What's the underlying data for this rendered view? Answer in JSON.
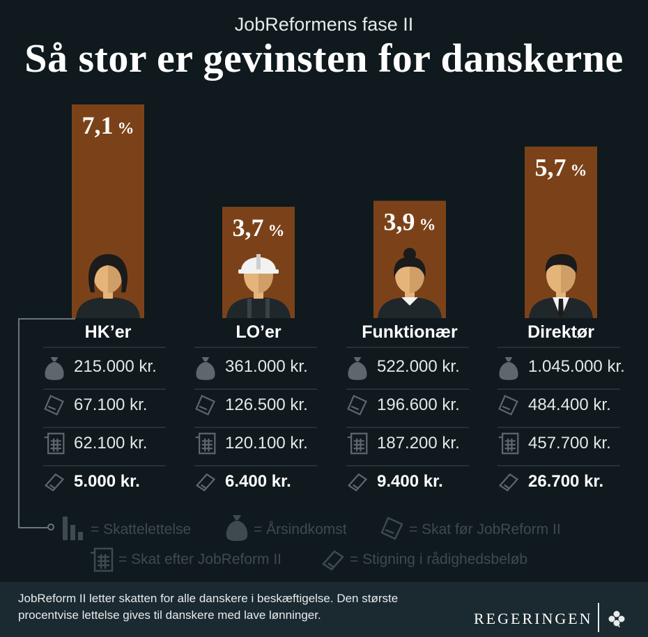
{
  "header": {
    "subtitle": "JobReformens fase II",
    "title": "Så stor er gevinsten for danskerne"
  },
  "chart_data": {
    "type": "bar",
    "categories": [
      "HK’er",
      "LO’er",
      "Funktionær",
      "Direktør"
    ],
    "values": [
      7.1,
      3.7,
      3.9,
      5.7
    ],
    "value_labels": [
      "7,1",
      "3,7",
      "3,9",
      "5,7"
    ],
    "unit": "%",
    "title": "Så stor er gevinsten for danskerne",
    "xlabel": "",
    "ylabel": "",
    "ylim": [
      0,
      7.1
    ],
    "grid": false,
    "legend": "bottom"
  },
  "table": {
    "columns": [
      {
        "label": "HK’er",
        "values": [
          "215.000 kr.",
          "67.100 kr.",
          "62.100 kr.",
          "5.000 kr."
        ]
      },
      {
        "label": "LO’er",
        "values": [
          "361.000 kr.",
          "126.500 kr.",
          "120.100 kr.",
          "6.400 kr."
        ]
      },
      {
        "label": "Funktionær",
        "values": [
          "522.000 kr.",
          "196.600 kr.",
          "187.200 kr.",
          "9.400 kr."
        ]
      },
      {
        "label": "Direktør",
        "values": [
          "1.045.000 kr.",
          "484.400 kr.",
          "457.700 kr.",
          "26.700 kr."
        ]
      }
    ],
    "row_icons": [
      "money-bag-icon",
      "tax-slip-icon",
      "calculator-icon",
      "tag-icon"
    ]
  },
  "legend": {
    "items": [
      {
        "icon": "bars-icon",
        "label": "= Skattelettelse"
      },
      {
        "icon": "money-bag-icon",
        "label": "= Årsindkomst"
      },
      {
        "icon": "tax-slip-icon",
        "label": "= Skat før JobReform II"
      },
      {
        "icon": "calculator-icon",
        "label": "= Skat efter JobReform II"
      },
      {
        "icon": "tag-icon",
        "label": "= Stigning i rådighedsbeløb"
      }
    ]
  },
  "footer": {
    "text": "JobReform II letter skatten for alle danskere i beskæftigelse. Den største procentvise lettelse gives til danskere med lave lønninger.",
    "brand": "REGERINGEN"
  },
  "colors": {
    "background": "#0f191e",
    "bar": "#7b4219",
    "footer": "#1a2a30",
    "skin": "#e5b47a",
    "icon": "#5d676c"
  }
}
